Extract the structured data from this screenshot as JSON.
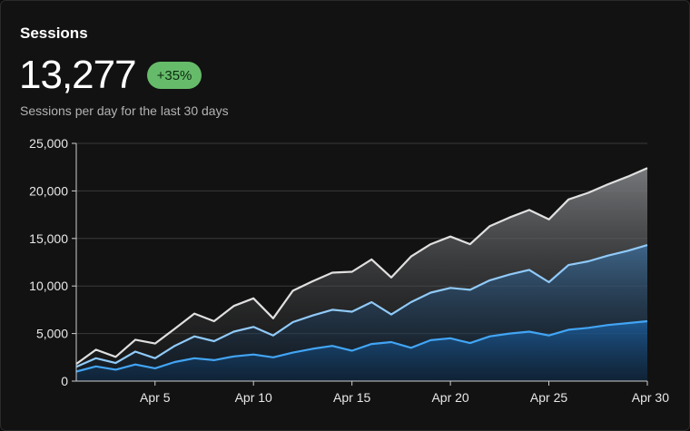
{
  "card": {
    "title": "Sessions",
    "value": "13,277",
    "badge": "+35%",
    "subtitle": "Sessions per day for the last 30 days"
  },
  "colors": {
    "background": "#121212",
    "badge": "#66bb6a",
    "series_light": "#e0e0e0",
    "series_mid": "#90caf9",
    "series_dark": "#42a5f5"
  },
  "chart_data": {
    "type": "area",
    "stacked": true,
    "x": [
      "Apr 1",
      "Apr 2",
      "Apr 3",
      "Apr 4",
      "Apr 5",
      "Apr 6",
      "Apr 7",
      "Apr 8",
      "Apr 9",
      "Apr 10",
      "Apr 11",
      "Apr 12",
      "Apr 13",
      "Apr 14",
      "Apr 15",
      "Apr 16",
      "Apr 17",
      "Apr 18",
      "Apr 19",
      "Apr 20",
      "Apr 21",
      "Apr 22",
      "Apr 23",
      "Apr 24",
      "Apr 25",
      "Apr 26",
      "Apr 27",
      "Apr 28",
      "Apr 29",
      "Apr 30"
    ],
    "xticks": [
      "Apr 5",
      "Apr 10",
      "Apr 15",
      "Apr 20",
      "Apr 25",
      "Apr 30"
    ],
    "yticks": [
      "0",
      "5,000",
      "10,000",
      "15,000",
      "20,000",
      "25,000"
    ],
    "ylim": [
      0,
      25000
    ],
    "grid": true,
    "series": [
      {
        "color": "#42a5f5",
        "values": [
          1000,
          1550,
          1200,
          1750,
          1350,
          2000,
          2400,
          2200,
          2600,
          2800,
          2500,
          3000,
          3400,
          3700,
          3200,
          3900,
          4100,
          3500,
          4300,
          4500,
          4000,
          4700,
          5000,
          5200,
          4800,
          5400,
          5600,
          5900,
          6100,
          6300
        ]
      },
      {
        "color": "#90caf9",
        "values": [
          500,
          850,
          700,
          1350,
          1050,
          1700,
          2300,
          2000,
          2600,
          2900,
          2300,
          3200,
          3500,
          3800,
          4100,
          4400,
          2900,
          4800,
          5000,
          5300,
          5600,
          5900,
          6200,
          6500,
          5600,
          6800,
          7000,
          7300,
          7600,
          8000
        ]
      },
      {
        "color": "#e0e0e0",
        "values": [
          300,
          900,
          650,
          1250,
          1550,
          1800,
          2400,
          2100,
          2700,
          3000,
          1800,
          3300,
          3600,
          3900,
          4200,
          4500,
          3900,
          4800,
          5100,
          5400,
          4800,
          5700,
          6000,
          6300,
          6600,
          6900,
          7200,
          7500,
          7800,
          8100
        ]
      }
    ]
  }
}
